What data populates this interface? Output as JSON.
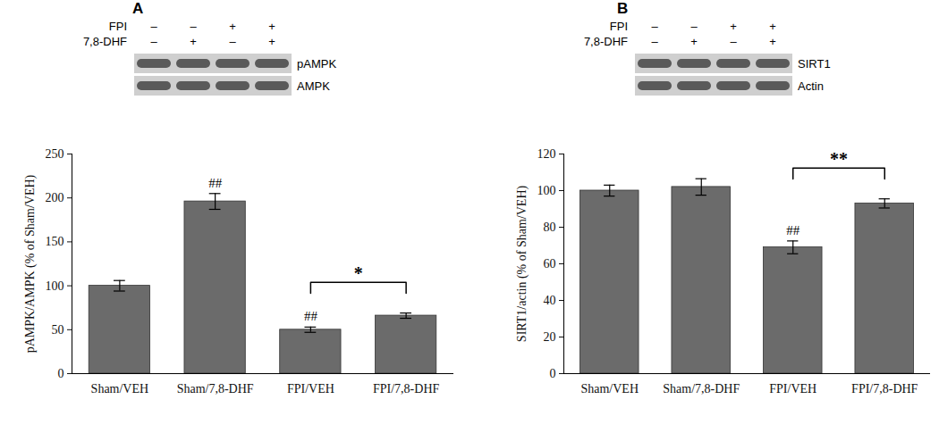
{
  "chart_data": [
    {
      "type": "bar",
      "panel": "A",
      "y_label": "pAMPK/AMPK (% of Sham/VEH)",
      "categories": [
        "Sham/VEH",
        "Sham/7,8-DHF",
        "FPI/VEH",
        "FPI/7,8-DHF"
      ],
      "values": [
        100,
        196,
        50,
        66
      ],
      "errors": [
        6,
        9,
        3,
        3
      ],
      "color": "#6b6b6b",
      "ylim": [
        0,
        250
      ],
      "yticks": [
        0,
        50,
        100,
        150,
        200,
        250
      ],
      "annotations": [
        {
          "category": "Sham/7,8-DHF",
          "text": "##"
        },
        {
          "category": "FPI/VEH",
          "text": "##"
        }
      ],
      "comparisons": [
        {
          "from": "FPI/VEH",
          "to": "FPI/7,8-DHF",
          "text": "*"
        }
      ],
      "blot": {
        "conditions": [
          {
            "label": "FPI",
            "signs": [
              "–",
              "–",
              "+",
              "+"
            ]
          },
          {
            "label": "7,8-DHF",
            "signs": [
              "–",
              "+",
              "–",
              "+"
            ]
          }
        ],
        "bands": [
          "pAMPK",
          "AMPK"
        ]
      }
    },
    {
      "type": "bar",
      "panel": "B",
      "y_label": "SIRT1/actin (% of Sham/VEH)",
      "categories": [
        "Sham/VEH",
        "Sham/7,8-DHF",
        "FPI/VEH",
        "FPI/7,8-DHF"
      ],
      "values": [
        100,
        102,
        69,
        93
      ],
      "errors": [
        3,
        4.5,
        3.5,
        2.5
      ],
      "color": "#6b6b6b",
      "ylim": [
        0,
        120
      ],
      "yticks": [
        0,
        20,
        40,
        60,
        80,
        100,
        120
      ],
      "annotations": [
        {
          "category": "FPI/VEH",
          "text": "##"
        }
      ],
      "comparisons": [
        {
          "from": "FPI/VEH",
          "to": "FPI/7,8-DHF",
          "text": "**"
        }
      ],
      "blot": {
        "conditions": [
          {
            "label": "FPI",
            "signs": [
              "–",
              "–",
              "+",
              "+"
            ]
          },
          {
            "label": "7,8-DHF",
            "signs": [
              "–",
              "+",
              "–",
              "+"
            ]
          }
        ],
        "bands": [
          "SIRT1",
          "Actin"
        ]
      }
    }
  ]
}
